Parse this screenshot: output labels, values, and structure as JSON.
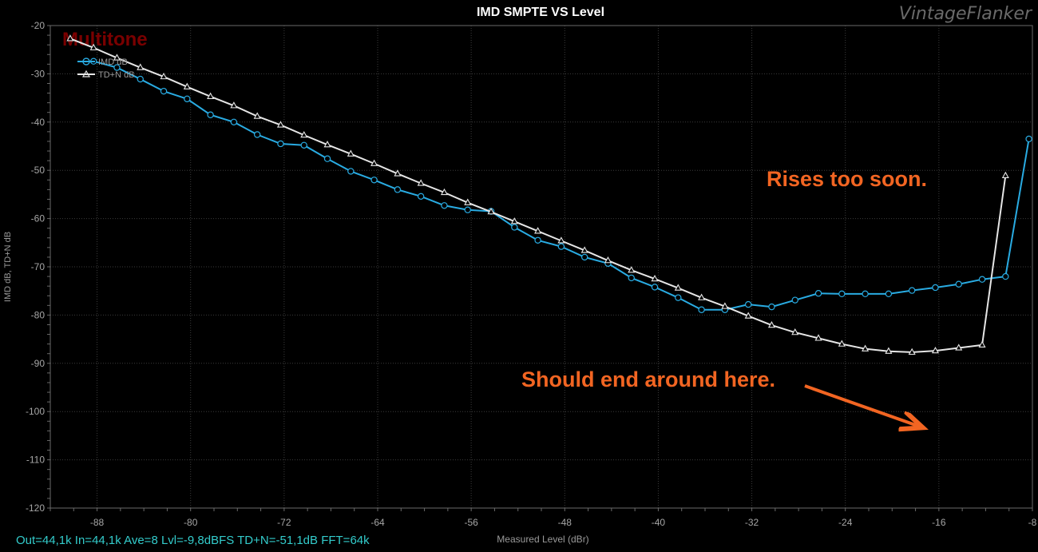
{
  "chart_data": {
    "type": "line",
    "title": "IMD SMPTE VS Level",
    "watermark": "VintageFlanker",
    "brand_label": "Multitone",
    "xlabel": "Measured Level (dBr)",
    "ylabel": "IMD dB, TD+N dB",
    "xlim": [
      -92,
      -8
    ],
    "ylim": [
      -120,
      -20
    ],
    "x_ticks": [
      "-88",
      "-80",
      "-72",
      "-64",
      "-56",
      "-48",
      "-40",
      "-32",
      "-24",
      "-16",
      "-8"
    ],
    "y_ticks": [
      "-20",
      "-30",
      "-40",
      "-50",
      "-60",
      "-70",
      "-80",
      "-90",
      "-100",
      "-110",
      "-120"
    ],
    "grid": true,
    "legend_position": "top-left",
    "status_line": "Out=44,1k In=44,1k Ave=8 Lvl=-9,8dBFS TD+N=-51,1dB FFT=64k",
    "annotations": [
      {
        "text": "Rises too soon."
      },
      {
        "text": "Should end around here."
      }
    ],
    "colors": {
      "imd": "#29abe2",
      "tdn": "#e6e6e6",
      "annotation": "#f26522",
      "brand": "#7a0000",
      "status": "#33cccc"
    },
    "series": [
      {
        "name": "IMD dB",
        "marker": "circle",
        "x": [
          -88.3,
          -86.3,
          -84.3,
          -82.3,
          -80.3,
          -78.3,
          -76.3,
          -74.3,
          -72.3,
          -70.3,
          -68.3,
          -66.3,
          -64.3,
          -62.3,
          -60.3,
          -58.3,
          -56.3,
          -54.3,
          -52.3,
          -50.3,
          -48.3,
          -46.3,
          -44.3,
          -42.3,
          -40.3,
          -38.3,
          -36.3,
          -34.3,
          -32.3,
          -30.3,
          -28.3,
          -26.3,
          -24.3,
          -22.3,
          -20.3,
          -18.3,
          -16.3,
          -14.3,
          -12.3,
          -10.3
        ],
        "values": [
          -27.4,
          -28.7,
          -31.1,
          -33.6,
          -35.2,
          -38.5,
          -40.0,
          -42.6,
          -44.5,
          -44.8,
          -47.6,
          -50.2,
          -52.0,
          -54.0,
          -55.4,
          -57.3,
          -58.2,
          -58.5,
          -61.8,
          -64.5,
          -65.8,
          -68.0,
          -69.3,
          -72.3,
          -74.2,
          -76.4,
          -78.9,
          -78.9,
          -77.8,
          -78.3,
          -76.9,
          -75.5,
          -75.6,
          -75.6,
          -75.6,
          -74.9,
          -74.3,
          -73.6,
          -72.6,
          -72.0
        ]
      },
      {
        "name": "TD+N dB",
        "marker": "triangle",
        "x": [
          -90.3,
          -88.3,
          -86.3,
          -84.3,
          -82.3,
          -80.3,
          -78.3,
          -76.3,
          -74.3,
          -72.3,
          -70.3,
          -68.3,
          -66.3,
          -64.3,
          -62.3,
          -60.3,
          -58.3,
          -56.3,
          -54.3,
          -52.3,
          -50.3,
          -48.3,
          -46.3,
          -44.3,
          -42.3,
          -40.3,
          -38.3,
          -36.3,
          -34.3,
          -32.3,
          -30.3,
          -28.3,
          -26.3,
          -24.3,
          -22.3,
          -20.3,
          -18.3,
          -16.3,
          -14.3,
          -12.3,
          -10.3
        ],
        "values": [
          -22.7,
          -24.6,
          -26.7,
          -28.7,
          -30.6,
          -32.7,
          -34.7,
          -36.6,
          -38.8,
          -40.6,
          -42.7,
          -44.7,
          -46.6,
          -48.6,
          -50.7,
          -52.7,
          -54.6,
          -56.7,
          -58.6,
          -60.6,
          -62.6,
          -64.6,
          -66.6,
          -68.7,
          -70.7,
          -72.5,
          -74.4,
          -76.4,
          -78.2,
          -80.2,
          -82.1,
          -83.6,
          -84.8,
          -86.0,
          -87.0,
          -87.5,
          -87.7,
          -87.4,
          -86.8,
          -86.2,
          -51.1
        ]
      }
    ],
    "imd_last_point": {
      "x": -8.3,
      "y": -43.5
    }
  }
}
